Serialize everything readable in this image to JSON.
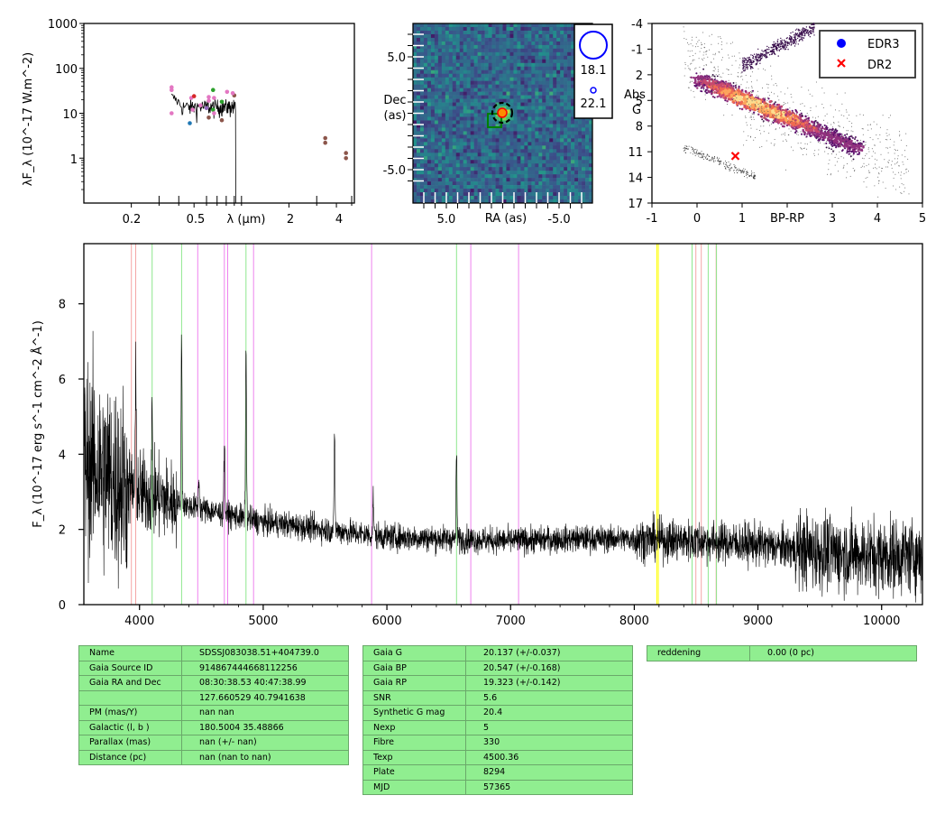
{
  "sed": {
    "ylabel": "λF_λ (10^-17 W.m^-2)",
    "xlabel": "λ (μm)",
    "yticks": [
      "1000",
      "100",
      "10",
      "1"
    ],
    "xticks": [
      "0.2",
      "0.5",
      "2",
      "4"
    ],
    "ylog_range": [
      0.1,
      1000
    ],
    "xlog_range": [
      0.1,
      5.2
    ],
    "photometry": [
      {
        "x": 0.36,
        "y": 38,
        "c": "#e377c2"
      },
      {
        "x": 0.36,
        "y": 33,
        "c": "#e377c2"
      },
      {
        "x": 0.36,
        "y": 10,
        "c": "#e377c2"
      },
      {
        "x": 0.47,
        "y": 6,
        "c": "#1f77b4"
      },
      {
        "x": 0.48,
        "y": 22,
        "c": "#e377c2"
      },
      {
        "x": 0.49,
        "y": 12,
        "c": "#e377c2"
      },
      {
        "x": 0.5,
        "y": 24,
        "c": "#d62728"
      },
      {
        "x": 0.55,
        "y": 15,
        "c": "#e377c2"
      },
      {
        "x": 0.6,
        "y": 13,
        "c": "#9467bd"
      },
      {
        "x": 0.62,
        "y": 8,
        "c": "#8c564b"
      },
      {
        "x": 0.62,
        "y": 23,
        "c": "#e377c2"
      },
      {
        "x": 0.62,
        "y": 19,
        "c": "#e377c2"
      },
      {
        "x": 0.66,
        "y": 12,
        "c": "#2ca02c"
      },
      {
        "x": 0.66,
        "y": 33,
        "c": "#2ca02c"
      },
      {
        "x": 0.67,
        "y": 22,
        "c": "#e377c2"
      },
      {
        "x": 0.67,
        "y": 10,
        "c": "#e377c2"
      },
      {
        "x": 0.75,
        "y": 7,
        "c": "#8c564b"
      },
      {
        "x": 0.75,
        "y": 18,
        "c": "#2ca02c"
      },
      {
        "x": 0.81,
        "y": 30,
        "c": "#e377c2"
      },
      {
        "x": 0.9,
        "y": 25,
        "c": "#8c564b"
      },
      {
        "x": 0.88,
        "y": 28,
        "c": "#e377c2"
      },
      {
        "x": 3.4,
        "y": 2.8,
        "c": "#8c564b"
      },
      {
        "x": 3.4,
        "y": 2.2,
        "c": "#8c564b"
      },
      {
        "x": 4.6,
        "y": 1.3,
        "c": "#8c564b"
      },
      {
        "x": 4.6,
        "y": 1.0,
        "c": "#8c564b"
      }
    ]
  },
  "image": {
    "xlabel": "RA (as)",
    "ylabel_line1": "Dec",
    "ylabel_line2": "(as)",
    "xticks": [
      "5.0",
      "-5.0"
    ],
    "yticks": [
      "5.0",
      "-5.0"
    ],
    "legend": [
      "18.1",
      "22.1"
    ]
  },
  "hr": {
    "xlabel": "BP-RP",
    "ylabel_line1": "Abs",
    "ylabel_line2": "G",
    "xticks": [
      "-1",
      "0",
      "1",
      "3",
      "4",
      "5"
    ],
    "yticks": [
      "-4",
      "-1",
      "2",
      "5",
      "8",
      "11",
      "14",
      "17"
    ],
    "legend": [
      {
        "label": "EDR3",
        "color": "#0000ff",
        "marker": "dot"
      },
      {
        "label": "DR2",
        "color": "#ff0000",
        "marker": "x"
      }
    ],
    "dr2_point": {
      "bp_rp": 0.85,
      "absg": 11.5
    }
  },
  "chart_data": {
    "type": "line",
    "xlabel": "",
    "ylabel": "F_λ (10^-17 erg s^-1 cm^-2 Å^-1)",
    "xlim": [
      3550,
      10330
    ],
    "ylim": [
      0,
      9.6
    ],
    "xticks": [
      "4000",
      "5000",
      "6000",
      "7000",
      "8000",
      "9000",
      "10000"
    ],
    "yticks": [
      "0",
      "2",
      "4",
      "6",
      "8"
    ],
    "continuum": [
      [
        3600,
        3.8
      ],
      [
        3800,
        3.3
      ],
      [
        4000,
        3.0
      ],
      [
        4300,
        2.7
      ],
      [
        4700,
        2.4
      ],
      [
        5000,
        2.2
      ],
      [
        5500,
        2.0
      ],
      [
        6000,
        1.8
      ],
      [
        6500,
        1.75
      ],
      [
        7000,
        1.7
      ],
      [
        7500,
        1.75
      ],
      [
        8000,
        1.75
      ],
      [
        8500,
        1.7
      ],
      [
        9000,
        1.6
      ],
      [
        9500,
        1.4
      ],
      [
        10000,
        1.3
      ],
      [
        10330,
        1.3
      ]
    ],
    "emission_lines": [
      [
        3970,
        2.8
      ],
      [
        4101,
        2.0
      ],
      [
        4340,
        4.5
      ],
      [
        4480,
        0.8
      ],
      [
        4686,
        2.0
      ],
      [
        4861,
        4.5
      ],
      [
        5577,
        2.5
      ],
      [
        5890,
        1.0
      ],
      [
        6563,
        2.3
      ]
    ],
    "vlines": [
      {
        "x": 3934,
        "color": "#f4a6a6"
      },
      {
        "x": 3969,
        "color": "#f4a6a6"
      },
      {
        "x": 4102,
        "color": "#8ee88e"
      },
      {
        "x": 4340,
        "color": "#8ee88e"
      },
      {
        "x": 4471,
        "color": "#ee82ee"
      },
      {
        "x": 4686,
        "color": "#ee82ee"
      },
      {
        "x": 4713,
        "color": "#ee82ee"
      },
      {
        "x": 4861,
        "color": "#8ee88e"
      },
      {
        "x": 4922,
        "color": "#ee82ee"
      },
      {
        "x": 5876,
        "color": "#ee82ee"
      },
      {
        "x": 6563,
        "color": "#8ee88e"
      },
      {
        "x": 6678,
        "color": "#ee82ee"
      },
      {
        "x": 7065,
        "color": "#ee82ee"
      },
      {
        "x": 8183,
        "color": "#ffff00"
      },
      {
        "x": 8195,
        "color": "#ffff00"
      },
      {
        "x": 8467,
        "color": "#8ee88e"
      },
      {
        "x": 8498,
        "color": "#f4a6a6"
      },
      {
        "x": 8542,
        "color": "#f4a6a6"
      },
      {
        "x": 8598,
        "color": "#8ee88e"
      },
      {
        "x": 8662,
        "color": "#f4a6a6"
      },
      {
        "x": 8665,
        "color": "#8ee88e"
      }
    ]
  },
  "table1": [
    [
      "Name",
      "SDSSJ083038.51+404739.0"
    ],
    [
      "Gaia Source ID",
      "914867444668112256"
    ],
    [
      "Gaia RA and Dec",
      "08:30:38.53    40:47:38.99"
    ],
    [
      "",
      "127.660529    40.7941638"
    ],
    [
      "PM (mas/Y)",
      "nan    nan"
    ],
    [
      "Galactic (l, b )",
      "180.5004    35.48866"
    ],
    [
      "Parallax (mas)",
      "nan (+/- nan)"
    ],
    [
      "Distance (pc)",
      "nan (nan to nan)"
    ]
  ],
  "table2": [
    [
      "Gaia G",
      "20.137 (+/-0.037)"
    ],
    [
      "Gaia BP",
      "20.547 (+/-0.168)"
    ],
    [
      "Gaia RP",
      "19.323 (+/-0.142)"
    ],
    [
      "SNR",
      "5.6"
    ],
    [
      "Synthetic G mag",
      "20.4"
    ],
    [
      "Nexp",
      "5"
    ],
    [
      "Fibre",
      "330"
    ],
    [
      "Texp",
      "4500.36"
    ],
    [
      "Plate",
      "8294"
    ],
    [
      "MJD",
      "57365"
    ]
  ],
  "table3": [
    [
      "reddening",
      "0.00 (0 pc)"
    ]
  ]
}
